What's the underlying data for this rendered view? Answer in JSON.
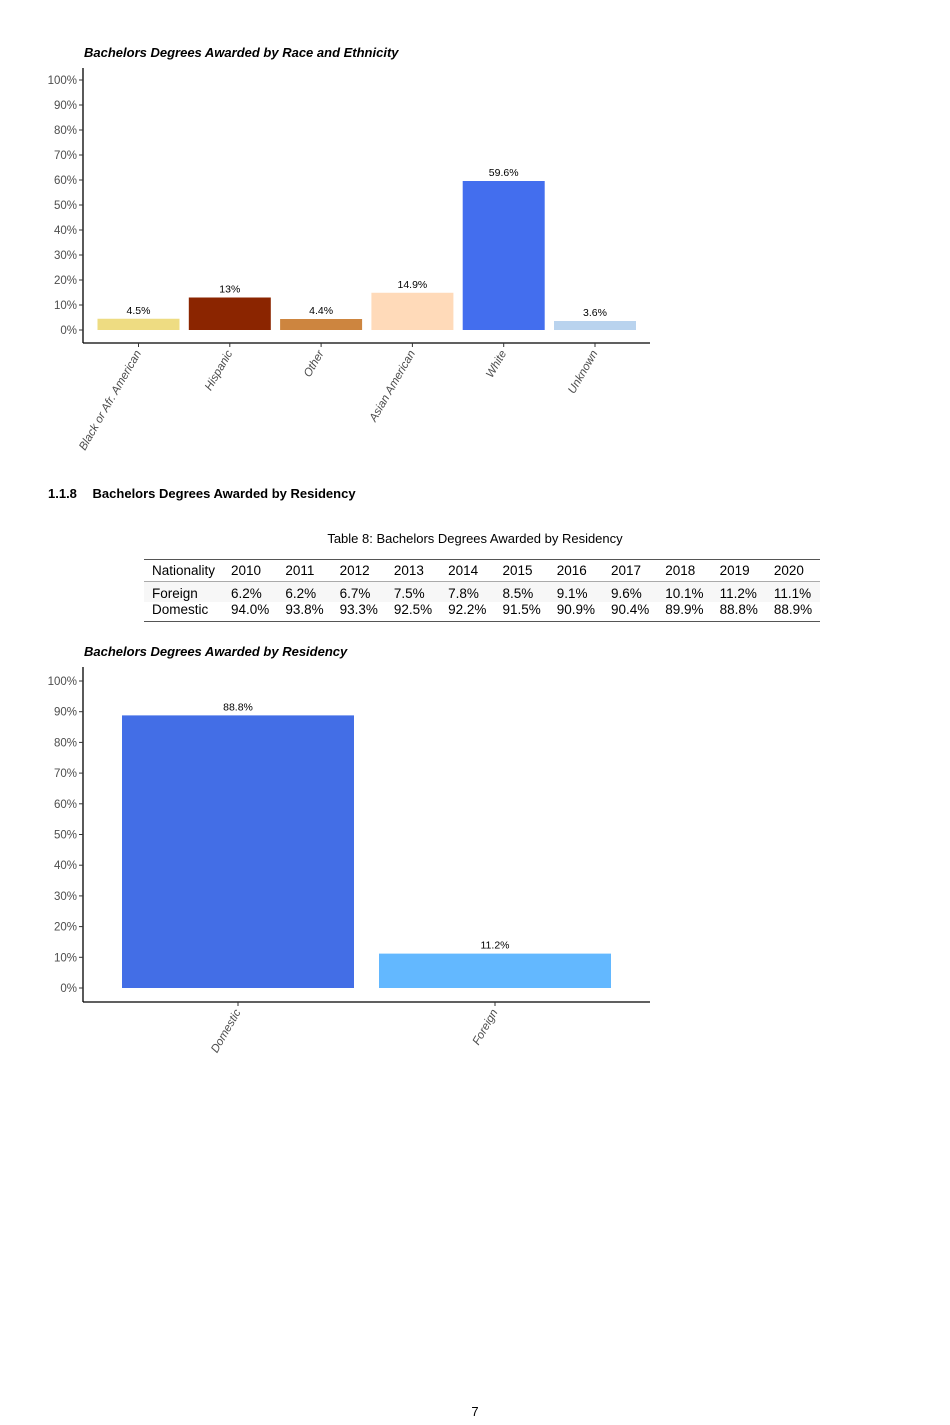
{
  "chart_data": [
    {
      "type": "bar",
      "title": "Bachelors Degrees Awarded by Race and Ethnicity",
      "categories": [
        "Black or Afr. American",
        "Hispanic",
        "Other",
        "Asian American",
        "White",
        "Unknown"
      ],
      "values": [
        4.5,
        13,
        4.4,
        14.9,
        59.6,
        3.6
      ],
      "data_labels": [
        "4.5%",
        "13%",
        "4.4%",
        "14.9%",
        "59.6%",
        "3.6%"
      ],
      "colors": [
        "#EEDC82",
        "#8B2500",
        "#CD853F",
        "#FFDAB9",
        "#436EEE",
        "#B9D3EE"
      ],
      "ylim": [
        0,
        100
      ],
      "yticks": [
        "0%",
        "10%",
        "20%",
        "30%",
        "40%",
        "50%",
        "60%",
        "70%",
        "80%",
        "90%",
        "100%"
      ],
      "grid": false
    },
    {
      "type": "bar",
      "title": "Bachelors Degrees Awarded by Residency",
      "categories": [
        "Domestic",
        "Foreign"
      ],
      "values": [
        88.8,
        11.2
      ],
      "data_labels": [
        "88.8%",
        "11.2%"
      ],
      "colors": [
        "#436EE6",
        "#63B8FF"
      ],
      "ylim": [
        0,
        100
      ],
      "yticks": [
        "0%",
        "10%",
        "20%",
        "30%",
        "40%",
        "50%",
        "60%",
        "70%",
        "80%",
        "90%",
        "100%"
      ],
      "grid": false
    }
  ],
  "section": {
    "number": "1.1.8",
    "title": "Bachelors Degrees Awarded by Residency"
  },
  "table": {
    "caption": "Table 8: Bachelors Degrees Awarded by Residency",
    "headers": [
      "Nationality",
      "2010",
      "2011",
      "2012",
      "2013",
      "2014",
      "2015",
      "2016",
      "2017",
      "2018",
      "2019",
      "2020"
    ],
    "rows": [
      [
        "Foreign",
        "6.2%",
        "6.2%",
        "6.7%",
        "7.5%",
        "7.8%",
        "8.5%",
        "9.1%",
        "9.6%",
        "10.1%",
        "11.2%",
        "11.1%"
      ],
      [
        "Domestic",
        "94.0%",
        "93.8%",
        "93.3%",
        "92.5%",
        "92.2%",
        "91.5%",
        "90.9%",
        "90.4%",
        "89.9%",
        "88.8%",
        "88.9%"
      ]
    ]
  },
  "page_number": "7"
}
